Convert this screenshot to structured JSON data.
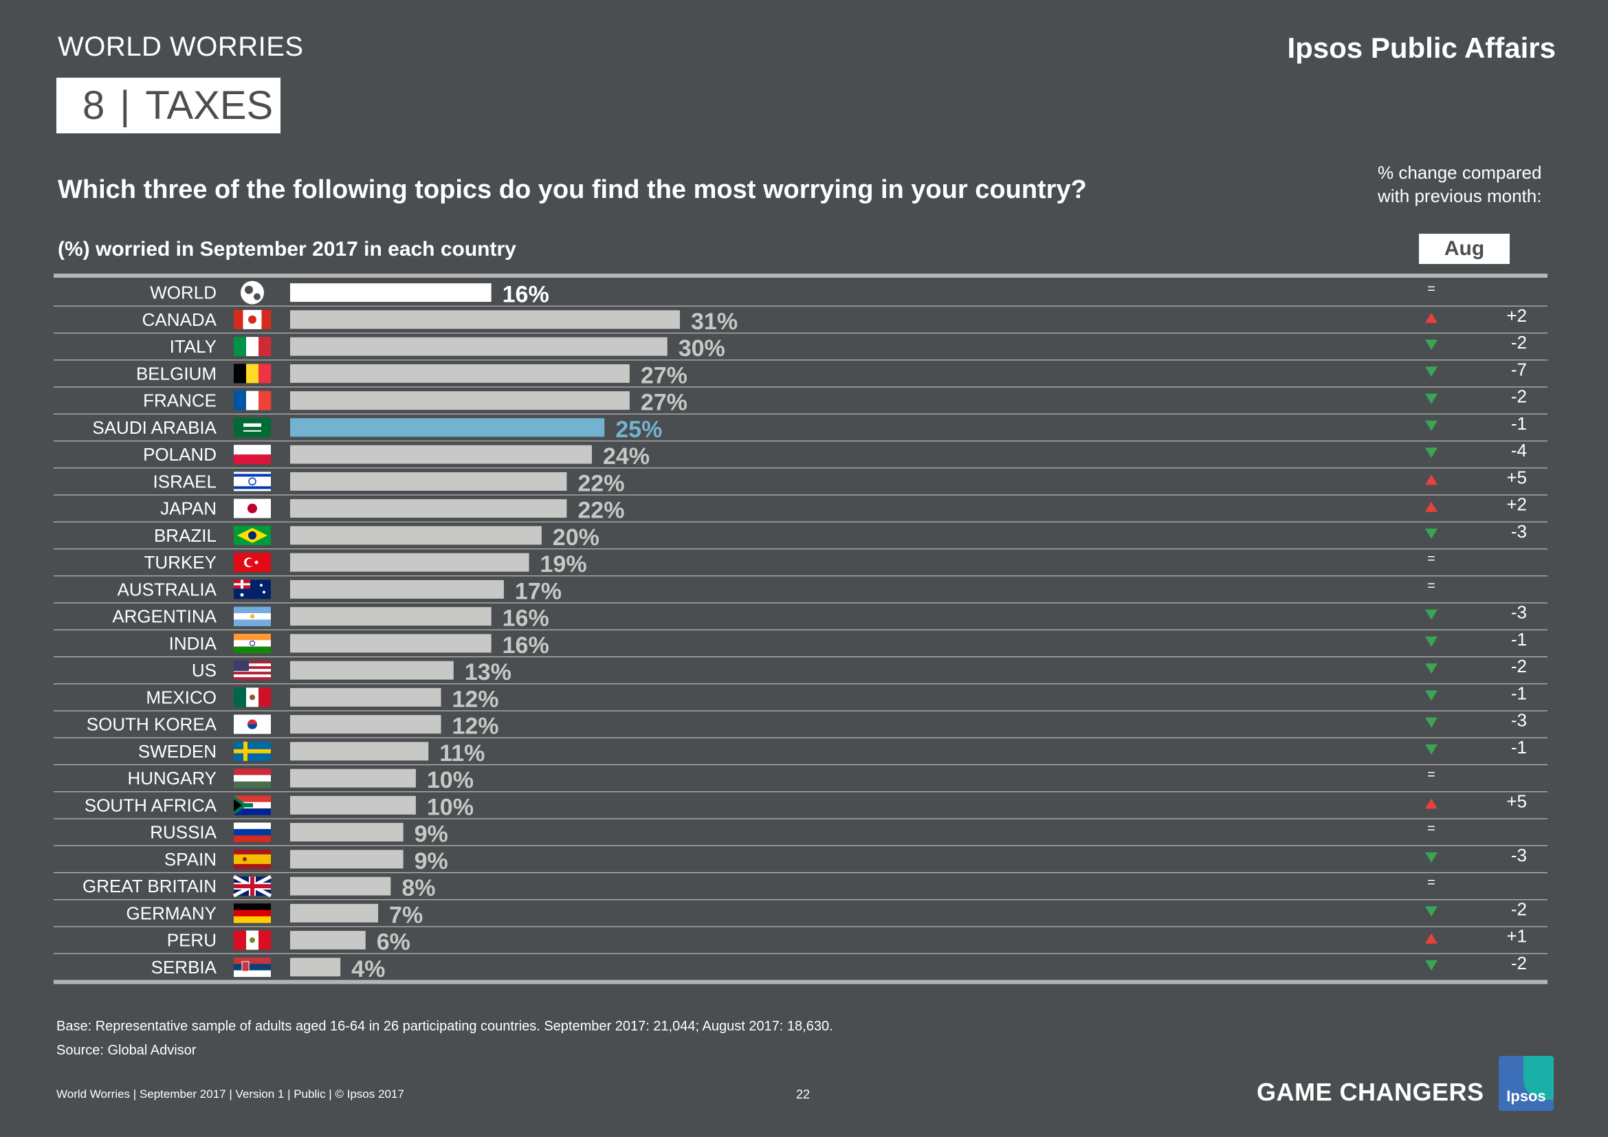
{
  "header": {
    "section_label": "WORLD WORRIES",
    "brand": "Ipsos Public Affairs",
    "title_number": "8",
    "title_separator": "|",
    "title_text": "TAXES",
    "question": "Which three of the following topics do you find the most worrying in your country?",
    "change_note_line1": "% change compared",
    "change_note_line2": "with previous month:",
    "subtitle": "(%) worried in September 2017 in each country",
    "comparison_period": "Aug 2017"
  },
  "colors": {
    "background": "#4a4e50",
    "bar_default": "#c8c8c6",
    "bar_world": "#ffffff",
    "bar_highlight": "#74b3d0",
    "label_default": "#c8c8c6",
    "up": "#e8413c",
    "down": "#3aa655"
  },
  "chart_data": {
    "type": "bar",
    "orientation": "horizontal",
    "title": "Which three of the following topics do you find the most worrying in your country?",
    "xlabel": "(%) worried in September 2017 in each country",
    "ylabel": "",
    "xlim": [
      0,
      31
    ],
    "highlight": "SAUDI ARABIA",
    "categories": [
      "WORLD",
      "CANADA",
      "ITALY",
      "BELGIUM",
      "FRANCE",
      "SAUDI ARABIA",
      "POLAND",
      "ISRAEL",
      "JAPAN",
      "BRAZIL",
      "TURKEY",
      "AUSTRALIA",
      "ARGENTINA",
      "INDIA",
      "US",
      "MEXICO",
      "SOUTH KOREA",
      "SWEDEN",
      "HUNGARY",
      "SOUTH AFRICA",
      "RUSSIA",
      "SPAIN",
      "GREAT BRITAIN",
      "GERMANY",
      "PERU",
      "SERBIA"
    ],
    "values": [
      16,
      31,
      30,
      27,
      27,
      25,
      24,
      22,
      22,
      20,
      19,
      17,
      16,
      16,
      13,
      12,
      12,
      11,
      10,
      10,
      9,
      9,
      8,
      7,
      6,
      4
    ],
    "value_labels": [
      "16%",
      "31%",
      "30%",
      "27%",
      "27%",
      "25%",
      "24%",
      "22%",
      "22%",
      "20%",
      "19%",
      "17%",
      "16%",
      "16%",
      "13%",
      "12%",
      "12%",
      "11%",
      "10%",
      "10%",
      "9%",
      "9%",
      "8%",
      "7%",
      "6%",
      "4%"
    ],
    "change_direction": [
      "same",
      "up",
      "down",
      "down",
      "down",
      "down",
      "down",
      "up",
      "up",
      "down",
      "same",
      "same",
      "down",
      "down",
      "down",
      "down",
      "down",
      "down",
      "same",
      "up",
      "same",
      "down",
      "same",
      "down",
      "up",
      "down"
    ],
    "change_labels": [
      "",
      "+2",
      "-2",
      "-7",
      "-2",
      "-1",
      "-4",
      "+5",
      "+2",
      "-3",
      "",
      "",
      "-3",
      "-1",
      "-2",
      "-1",
      "-3",
      "-1",
      "",
      "+5",
      "",
      "-3",
      "",
      "-2",
      "+1",
      "-2"
    ],
    "same_symbol": "="
  },
  "footer": {
    "base_note": "Base: Representative sample of adults aged 16-64 in 26 participating countries. September 2017: 21,044; August 2017: 18,630.",
    "source_note": "Source: Global Advisor",
    "left": "World Worries | September 2017 | Version 1 | Public | © Ipsos 2017",
    "page_number": "22",
    "tagline": "GAME CHANGERS",
    "logo_text": "Ipsos"
  }
}
